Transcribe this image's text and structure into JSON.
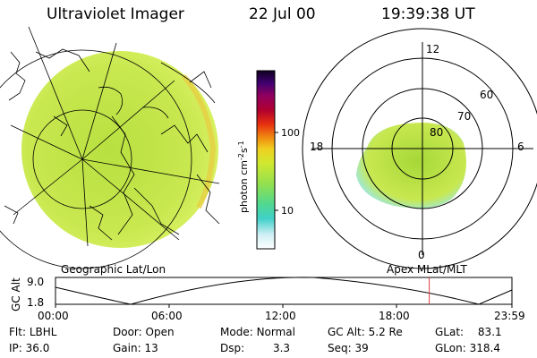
{
  "header": {
    "title": "Ultraviolet Imager",
    "date": "22 Jul 00",
    "time": "19:39:38 UT"
  },
  "colors": {
    "aurora": "#c8e850",
    "aurora_inner": "#a6d838",
    "aurora_edge": "#7fe0ff",
    "aurora_bright": "#e8d040",
    "marker": "#e04040"
  },
  "colorbar": {
    "label": "photon cm",
    "label_sup1": "-2",
    "label_mid": "s",
    "label_sup2": "-1",
    "ticks": [
      "100",
      "10"
    ]
  },
  "panels": {
    "left_caption": "Geographic Lat/Lon",
    "right_caption": "Apex MLat/MLT"
  },
  "polar_plot": {
    "mlt_labels": {
      "top": "12",
      "left": "18",
      "right": "6",
      "bottom": "0"
    },
    "lat_labels": [
      "60",
      "70",
      "80"
    ]
  },
  "altitude_plot": {
    "ylabel": "GC Alt",
    "y_ticks": [
      "9.0",
      "1.8"
    ],
    "x_ticks": [
      "00:00",
      "06:00",
      "12:00",
      "18:00",
      "23:59"
    ],
    "current_time_fraction": 0.8188
  },
  "info": {
    "row1": [
      {
        "key": "Flt:",
        "value": "LBHL"
      },
      {
        "key": "Door:",
        "value": "Open"
      },
      {
        "key": "Mode:",
        "value": "Normal"
      },
      {
        "key": "GC Alt:",
        "value": "5.2 Re"
      },
      {
        "key": "GLat:",
        "value": "83.1"
      }
    ],
    "row2": [
      {
        "key": "IP:",
        "value": "36.0"
      },
      {
        "key": "Gain:",
        "value": "13"
      },
      {
        "key": "Dsp:",
        "value": "3.3"
      },
      {
        "key": "Seq:",
        "value": "39"
      },
      {
        "key": "GLon:",
        "value": "318.4"
      }
    ]
  }
}
